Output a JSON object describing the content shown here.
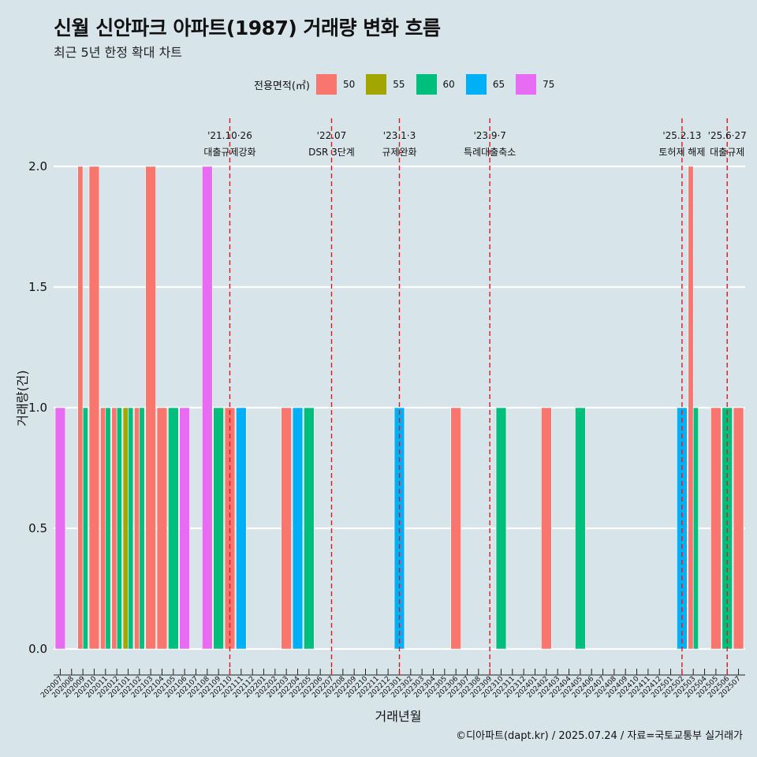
{
  "header": {
    "title": "신월 신안파크 아파트(1987) 거래량 변화 흐름",
    "subtitle": "최근 5년 한정 확대 차트"
  },
  "legend": {
    "title": "전용면적(㎡)",
    "items": [
      {
        "label": "50",
        "color": "#f8766d"
      },
      {
        "label": "55",
        "color": "#a3a500"
      },
      {
        "label": "60",
        "color": "#00bf7d"
      },
      {
        "label": "65",
        "color": "#00b0f6"
      },
      {
        "label": "75",
        "color": "#e76bf3"
      }
    ]
  },
  "caption": "©디아파트(dapt.kr) / 2025.07.24 / 자료=국토교통부 실거래가",
  "chart_data": {
    "type": "bar",
    "xlabel": "거래년월",
    "ylabel": "거래량(건)",
    "ylim": [
      0,
      2
    ],
    "yticks": [
      0,
      0.5,
      1,
      1.5,
      2
    ],
    "ytick_labels": [
      "0.0",
      "0.5",
      "1.0",
      "1.5",
      "2.0"
    ],
    "grid": true,
    "legend_position": "top",
    "categories": [
      "202007",
      "202008",
      "202009",
      "202010",
      "202011",
      "202012",
      "202101",
      "202102",
      "202103",
      "202104",
      "202105",
      "202106",
      "202107",
      "202108",
      "202109",
      "202110",
      "202111",
      "202112",
      "202201",
      "202202",
      "202203",
      "202204",
      "202205",
      "202206",
      "202207",
      "202208",
      "202209",
      "202210",
      "202211",
      "202212",
      "202301",
      "202302",
      "202303",
      "202304",
      "202305",
      "202306",
      "202307",
      "202308",
      "202309",
      "202310",
      "202311",
      "202312",
      "202401",
      "202402",
      "202403",
      "202404",
      "202405",
      "202406",
      "202407",
      "202408",
      "202409",
      "202410",
      "202411",
      "202412",
      "202501",
      "202502",
      "202503",
      "202504",
      "202505",
      "202506",
      "202507"
    ],
    "series": [
      {
        "name": "50",
        "color": "#f8766d",
        "values": [
          0,
          0,
          2,
          2,
          1,
          1,
          0,
          1,
          2,
          1,
          0,
          0,
          0,
          0,
          0,
          1,
          0,
          0,
          0,
          0,
          1,
          0,
          0,
          0,
          0,
          0,
          0,
          0,
          0,
          0,
          0,
          0,
          0,
          0,
          0,
          1,
          0,
          0,
          0,
          0,
          0,
          0,
          0,
          1,
          0,
          0,
          0,
          0,
          0,
          0,
          0,
          0,
          0,
          0,
          0,
          0,
          2,
          0,
          1,
          0,
          1
        ]
      },
      {
        "name": "55",
        "color": "#a3a500",
        "values": [
          0,
          0,
          0,
          0,
          0,
          0,
          1,
          0,
          0,
          0,
          0,
          0,
          0,
          0,
          0,
          0,
          0,
          0,
          0,
          0,
          0,
          0,
          0,
          0,
          0,
          0,
          0,
          0,
          0,
          0,
          0,
          0,
          0,
          0,
          0,
          0,
          0,
          0,
          0,
          0,
          0,
          0,
          0,
          0,
          0,
          0,
          0,
          0,
          0,
          0,
          0,
          0,
          0,
          0,
          0,
          0,
          0,
          0,
          0,
          0,
          0
        ]
      },
      {
        "name": "60",
        "color": "#00bf7d",
        "values": [
          0,
          0,
          1,
          0,
          1,
          1,
          1,
          1,
          0,
          0,
          1,
          0,
          0,
          0,
          1,
          0,
          0,
          0,
          0,
          0,
          0,
          0,
          1,
          0,
          0,
          0,
          0,
          0,
          0,
          0,
          0,
          0,
          0,
          0,
          0,
          0,
          0,
          0,
          0,
          1,
          0,
          0,
          0,
          0,
          0,
          0,
          1,
          0,
          0,
          0,
          0,
          0,
          0,
          0,
          0,
          0,
          1,
          0,
          0,
          1,
          0
        ]
      },
      {
        "name": "65",
        "color": "#00b0f6",
        "values": [
          0,
          0,
          0,
          0,
          0,
          0,
          0,
          0,
          0,
          0,
          0,
          0,
          0,
          0,
          0,
          0,
          1,
          0,
          0,
          0,
          0,
          1,
          0,
          0,
          0,
          0,
          0,
          0,
          0,
          0,
          1,
          0,
          0,
          0,
          0,
          0,
          0,
          0,
          0,
          0,
          0,
          0,
          0,
          0,
          0,
          0,
          0,
          0,
          0,
          0,
          0,
          0,
          0,
          0,
          0,
          1,
          0,
          0,
          0,
          0,
          0
        ]
      },
      {
        "name": "75",
        "color": "#e76bf3",
        "values": [
          1,
          0,
          0,
          0,
          0,
          0,
          0,
          0,
          0,
          0,
          0,
          1,
          0,
          2,
          0,
          0,
          0,
          0,
          0,
          0,
          0,
          0,
          0,
          0,
          0,
          0,
          0,
          0,
          0,
          0,
          0,
          0,
          0,
          0,
          0,
          0,
          0,
          0,
          0,
          0,
          0,
          0,
          0,
          0,
          0,
          0,
          0,
          0,
          0,
          0,
          0,
          0,
          0,
          0,
          0,
          0,
          0,
          0,
          0,
          0,
          0
        ]
      }
    ],
    "annotations": [
      {
        "category": "202110",
        "date": "'21.10·26",
        "label": "대출규제강화"
      },
      {
        "category": "202207",
        "date": "'22.07",
        "label": "DSR 3단계"
      },
      {
        "category": "202301",
        "date": "'23.1·3",
        "label": "규제완화"
      },
      {
        "category": "202309",
        "date": "'23.9·7",
        "label": "특례대출축소"
      },
      {
        "category": "202502",
        "date": "'25.2.13",
        "label": "토허제 해제"
      },
      {
        "category": "202506",
        "date": "'25.6·27",
        "label": "대출규제"
      }
    ]
  }
}
